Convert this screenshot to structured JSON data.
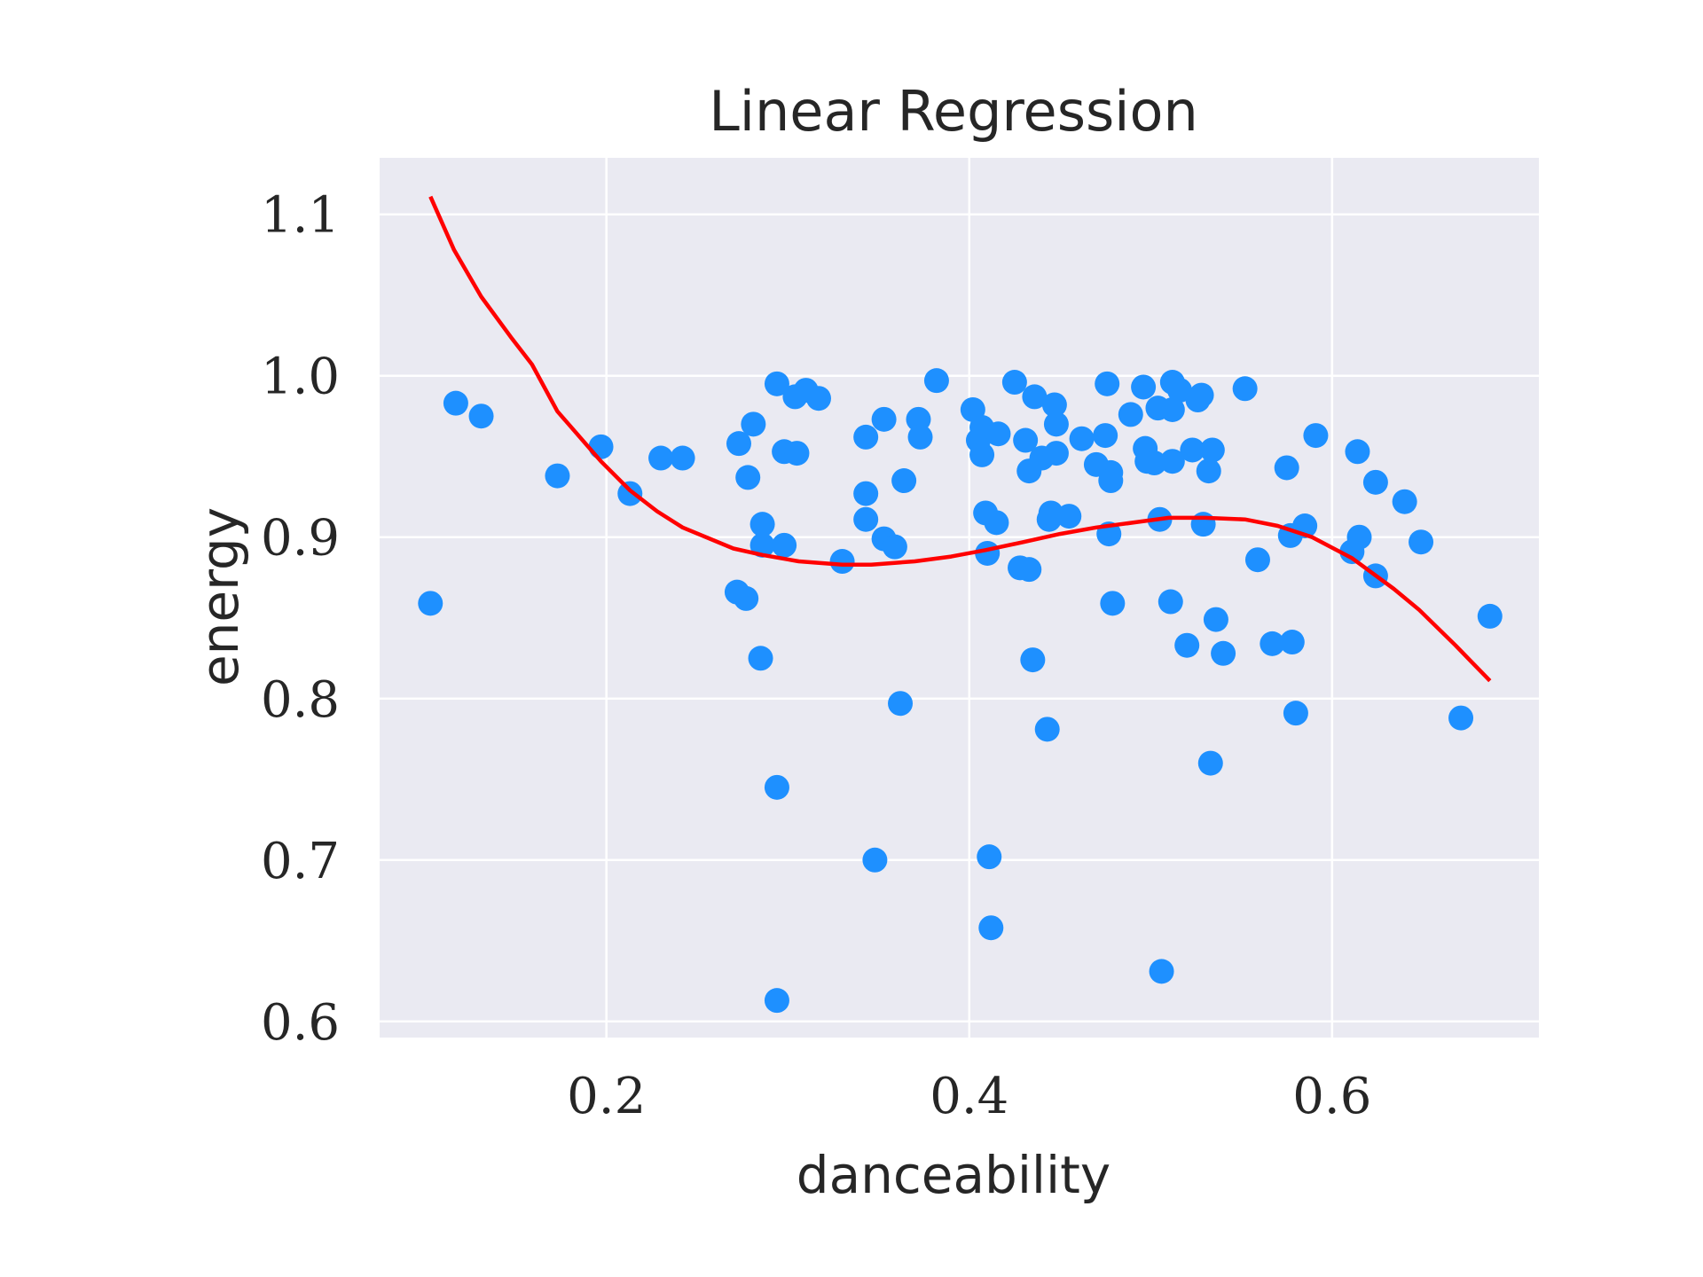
{
  "chart_data": {
    "type": "scatter",
    "title": "Linear Regression",
    "xlabel": "danceability",
    "ylabel": "energy",
    "xlim": [
      0.075,
      0.714
    ],
    "ylim": [
      0.59,
      1.135
    ],
    "xticks": [
      0.2,
      0.4,
      0.6
    ],
    "xtick_labels": [
      "0.2",
      "0.4",
      "0.6"
    ],
    "yticks": [
      0.6,
      0.7,
      0.8,
      0.9,
      1.0,
      1.1
    ],
    "ytick_labels": [
      "0.6",
      "0.7",
      "0.8",
      "0.9",
      "1.0",
      "1.1"
    ],
    "grid": true,
    "colors": {
      "background": "#eaeaf2",
      "points": "#1e90ff",
      "fit_line": "#ff0000",
      "grid": "#ffffff"
    },
    "series": [
      {
        "type": "scatter",
        "points": [
          [
            0.103,
            0.859
          ],
          [
            0.117,
            0.983
          ],
          [
            0.131,
            0.975
          ],
          [
            0.173,
            0.938
          ],
          [
            0.197,
            0.956
          ],
          [
            0.213,
            0.927
          ],
          [
            0.23,
            0.949
          ],
          [
            0.242,
            0.949
          ],
          [
            0.272,
            0.866
          ],
          [
            0.273,
            0.958
          ],
          [
            0.277,
            0.862
          ],
          [
            0.278,
            0.937
          ],
          [
            0.281,
            0.97
          ],
          [
            0.285,
            0.825
          ],
          [
            0.286,
            0.908
          ],
          [
            0.286,
            0.895
          ],
          [
            0.294,
            0.995
          ],
          [
            0.294,
            0.745
          ],
          [
            0.294,
            0.613
          ],
          [
            0.298,
            0.953
          ],
          [
            0.298,
            0.895
          ],
          [
            0.304,
            0.987
          ],
          [
            0.305,
            0.952
          ],
          [
            0.31,
            0.991
          ],
          [
            0.317,
            0.986
          ],
          [
            0.33,
            0.885
          ],
          [
            0.343,
            0.962
          ],
          [
            0.343,
            0.927
          ],
          [
            0.343,
            0.911
          ],
          [
            0.348,
            0.7
          ],
          [
            0.353,
            0.973
          ],
          [
            0.353,
            0.899
          ],
          [
            0.359,
            0.894
          ],
          [
            0.362,
            0.797
          ],
          [
            0.364,
            0.935
          ],
          [
            0.372,
            0.973
          ],
          [
            0.373,
            0.962
          ],
          [
            0.382,
            0.997
          ],
          [
            0.402,
            0.979
          ],
          [
            0.405,
            0.96
          ],
          [
            0.407,
            0.968
          ],
          [
            0.407,
            0.951
          ],
          [
            0.409,
            0.915
          ],
          [
            0.41,
            0.89
          ],
          [
            0.411,
            0.702
          ],
          [
            0.412,
            0.658
          ],
          [
            0.415,
            0.909
          ],
          [
            0.416,
            0.964
          ],
          [
            0.425,
            0.996
          ],
          [
            0.428,
            0.881
          ],
          [
            0.431,
            0.96
          ],
          [
            0.433,
            0.88
          ],
          [
            0.433,
            0.941
          ],
          [
            0.435,
            0.824
          ],
          [
            0.436,
            0.987
          ],
          [
            0.44,
            0.949
          ],
          [
            0.443,
            0.781
          ],
          [
            0.444,
            0.911
          ],
          [
            0.445,
            0.915
          ],
          [
            0.447,
            0.982
          ],
          [
            0.448,
            0.952
          ],
          [
            0.448,
            0.97
          ],
          [
            0.455,
            0.913
          ],
          [
            0.462,
            0.961
          ],
          [
            0.47,
            0.945
          ],
          [
            0.475,
            0.963
          ],
          [
            0.476,
            0.995
          ],
          [
            0.477,
            0.902
          ],
          [
            0.478,
            0.94
          ],
          [
            0.478,
            0.935
          ],
          [
            0.479,
            0.859
          ],
          [
            0.489,
            0.976
          ],
          [
            0.496,
            0.993
          ],
          [
            0.497,
            0.955
          ],
          [
            0.498,
            0.947
          ],
          [
            0.502,
            0.946
          ],
          [
            0.504,
            0.98
          ],
          [
            0.505,
            0.911
          ],
          [
            0.506,
            0.631
          ],
          [
            0.511,
            0.86
          ],
          [
            0.512,
            0.979
          ],
          [
            0.512,
            0.996
          ],
          [
            0.512,
            0.947
          ],
          [
            0.516,
            0.991
          ],
          [
            0.52,
            0.833
          ],
          [
            0.523,
            0.954
          ],
          [
            0.526,
            0.985
          ],
          [
            0.528,
            0.988
          ],
          [
            0.529,
            0.908
          ],
          [
            0.532,
            0.941
          ],
          [
            0.533,
            0.76
          ],
          [
            0.534,
            0.954
          ],
          [
            0.536,
            0.849
          ],
          [
            0.54,
            0.828
          ],
          [
            0.552,
            0.992
          ],
          [
            0.559,
            0.886
          ],
          [
            0.567,
            0.834
          ],
          [
            0.575,
            0.943
          ],
          [
            0.577,
            0.901
          ],
          [
            0.578,
            0.835
          ],
          [
            0.58,
            0.791
          ],
          [
            0.585,
            0.907
          ],
          [
            0.591,
            0.963
          ],
          [
            0.611,
            0.891
          ],
          [
            0.614,
            0.953
          ],
          [
            0.615,
            0.9
          ],
          [
            0.624,
            0.934
          ],
          [
            0.624,
            0.876
          ],
          [
            0.64,
            0.922
          ],
          [
            0.649,
            0.897
          ],
          [
            0.671,
            0.788
          ],
          [
            0.687,
            0.851
          ]
        ]
      },
      {
        "type": "line",
        "points": [
          [
            0.103,
            1.111
          ],
          [
            0.116,
            1.078
          ],
          [
            0.131,
            1.049
          ],
          [
            0.148,
            1.023
          ],
          [
            0.159,
            1.007
          ],
          [
            0.173,
            0.978
          ],
          [
            0.197,
            0.947
          ],
          [
            0.213,
            0.929
          ],
          [
            0.228,
            0.916
          ],
          [
            0.242,
            0.906
          ],
          [
            0.27,
            0.893
          ],
          [
            0.286,
            0.889
          ],
          [
            0.306,
            0.885
          ],
          [
            0.33,
            0.883
          ],
          [
            0.346,
            0.883
          ],
          [
            0.37,
            0.885
          ],
          [
            0.39,
            0.888
          ],
          [
            0.409,
            0.892
          ],
          [
            0.43,
            0.897
          ],
          [
            0.45,
            0.902
          ],
          [
            0.47,
            0.906
          ],
          [
            0.49,
            0.909
          ],
          [
            0.51,
            0.912
          ],
          [
            0.53,
            0.912
          ],
          [
            0.552,
            0.911
          ],
          [
            0.57,
            0.907
          ],
          [
            0.589,
            0.9
          ],
          [
            0.611,
            0.887
          ],
          [
            0.634,
            0.868
          ],
          [
            0.648,
            0.855
          ],
          [
            0.668,
            0.833
          ],
          [
            0.687,
            0.811
          ]
        ]
      }
    ]
  }
}
